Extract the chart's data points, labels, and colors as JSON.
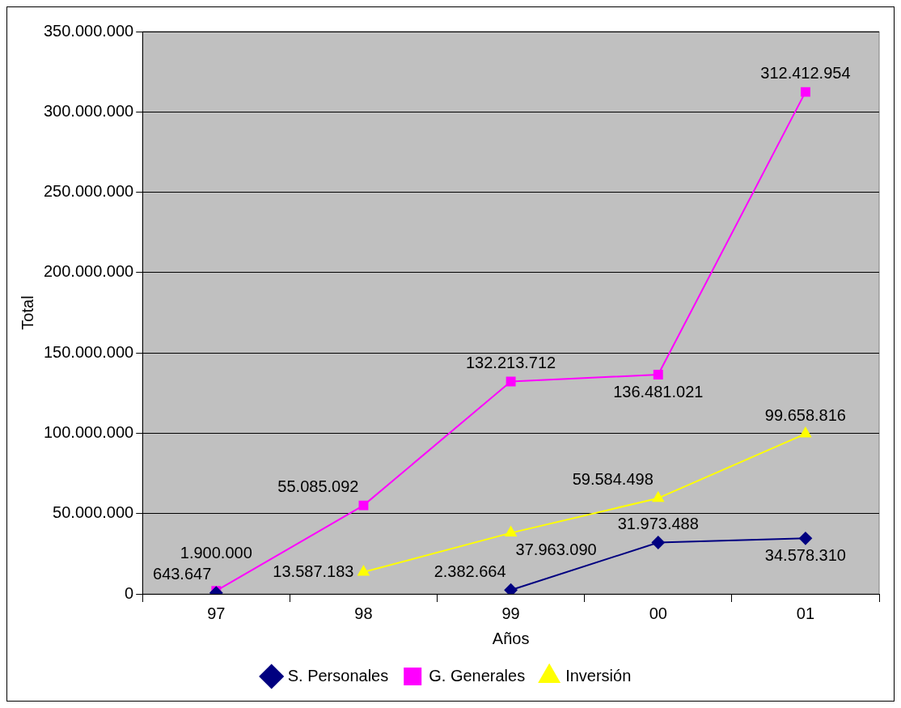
{
  "chart_data": {
    "type": "line",
    "xlabel": "Años",
    "ylabel": "Total",
    "categories": [
      "97",
      "98",
      "99",
      "00",
      "01"
    ],
    "series": [
      {
        "name": "S. Personales",
        "color": "#000080",
        "marker": "diamond",
        "values": [
          643647,
          null,
          2382664,
          31973488,
          34578310
        ],
        "value_labels": [
          "643.647",
          null,
          "2.382.664",
          "31.973.488",
          "34.578.310"
        ]
      },
      {
        "name": "G. Generales",
        "color": "#ff00ff",
        "marker": "square",
        "values": [
          1900000,
          55085092,
          132213712,
          136481021,
          312412954
        ],
        "value_labels": [
          "1.900.000",
          "55.085.092",
          "132.213.712",
          "136.481.021",
          "312.412.954"
        ]
      },
      {
        "name": "Inversión",
        "color": "#ffff00",
        "marker": "triangle",
        "values": [
          null,
          13587183,
          37963090,
          59584498,
          99658816
        ],
        "value_labels": [
          null,
          "13.587.183",
          "37.963.090",
          "59.584.498",
          "99.658.816"
        ]
      }
    ],
    "ylim": [
      0,
      350000000
    ],
    "yticks": [
      {
        "value": 0,
        "label": "0"
      },
      {
        "value": 50000000,
        "label": "50.000.000"
      },
      {
        "value": 100000000,
        "label": "100.000.000"
      },
      {
        "value": 150000000,
        "label": "150.000.000"
      },
      {
        "value": 200000000,
        "label": "200.000.000"
      },
      {
        "value": 250000000,
        "label": "250.000.000"
      },
      {
        "value": 300000000,
        "label": "300.000.000"
      },
      {
        "value": 350000000,
        "label": "350.000.000"
      }
    ],
    "grid": "y",
    "legend": "bottom"
  }
}
